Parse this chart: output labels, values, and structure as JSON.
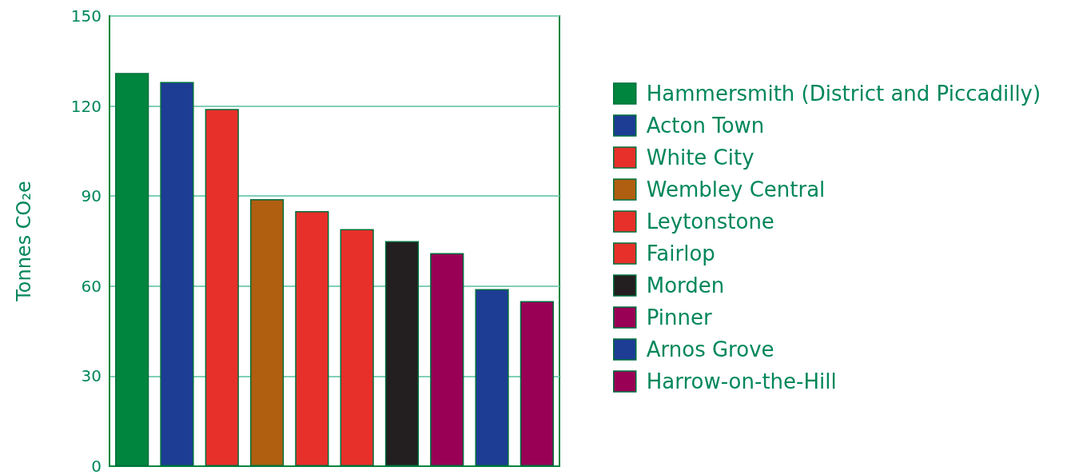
{
  "chart_data": {
    "type": "bar",
    "ylabel": "Tonnes CO₂e",
    "categories": [
      null,
      null,
      null,
      null,
      null,
      null,
      null,
      null,
      null,
      null
    ],
    "series": [
      {
        "name": "Hammersmith (District and Piccadilly)",
        "color": "#00853f",
        "values": [
          131,
          null,
          null,
          null,
          null,
          null,
          null,
          null,
          null,
          null
        ]
      },
      {
        "name": "Acton Town",
        "color": "#1d3c94",
        "values": [
          null,
          128,
          null,
          null,
          null,
          null,
          null,
          null,
          null,
          null
        ]
      },
      {
        "name": "White City",
        "color": "#e8302a",
        "values": [
          null,
          null,
          119,
          null,
          null,
          null,
          null,
          null,
          null,
          null
        ]
      },
      {
        "name": "Wembley Central",
        "color": "#b05e10",
        "values": [
          null,
          null,
          null,
          89,
          null,
          null,
          null,
          null,
          null,
          null
        ]
      },
      {
        "name": "Leytonstone",
        "color": "#e8302a",
        "values": [
          null,
          null,
          null,
          null,
          85,
          null,
          null,
          null,
          null,
          null
        ]
      },
      {
        "name": "Fairlop",
        "color": "#e8302a",
        "values": [
          null,
          null,
          null,
          null,
          null,
          79,
          null,
          null,
          null,
          null
        ]
      },
      {
        "name": "Morden",
        "color": "#231f20",
        "values": [
          null,
          null,
          null,
          null,
          null,
          null,
          75,
          null,
          null,
          null
        ]
      },
      {
        "name": "Pinner",
        "color": "#990055",
        "values": [
          null,
          null,
          null,
          null,
          null,
          null,
          null,
          71,
          null,
          null
        ]
      },
      {
        "name": "Arnos Grove",
        "color": "#1d3c94",
        "values": [
          null,
          null,
          null,
          null,
          null,
          null,
          null,
          null,
          59,
          null
        ]
      },
      {
        "name": "Harrow-on-the-Hill",
        "color": "#990055",
        "values": [
          null,
          null,
          null,
          null,
          null,
          null,
          null,
          null,
          null,
          55
        ]
      }
    ],
    "ylim": [
      0,
      150
    ],
    "yticks": [
      0,
      30,
      60,
      90,
      120,
      150
    ],
    "grid": "y",
    "legend": "right"
  }
}
